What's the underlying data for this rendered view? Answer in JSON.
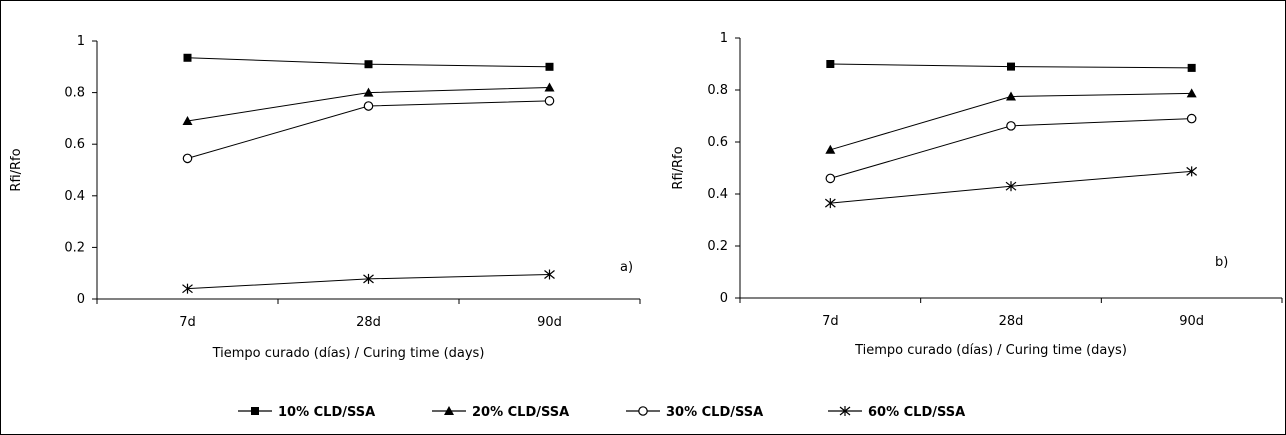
{
  "chart_data": [
    {
      "type": "line",
      "panel_label": "a)",
      "categories": [
        "7d",
        "28d",
        "90d"
      ],
      "xlabel": "Tiempo curado (días) / Curing time (days)",
      "ylabel": "Rfi/Rfo",
      "ylim": [
        0,
        1
      ],
      "yticks": [
        "0",
        "0.2",
        "0.4",
        "0.6",
        "0.8",
        "1"
      ],
      "grid": false,
      "series": [
        {
          "name": "10% CLD/SSA",
          "marker": "square",
          "values": [
            0.935,
            0.91,
            0.9
          ]
        },
        {
          "name": "20% CLD/SSA",
          "marker": "triangle",
          "values": [
            0.69,
            0.8,
            0.82
          ]
        },
        {
          "name": "30% CLD/SSA",
          "marker": "circle",
          "values": [
            0.545,
            0.748,
            0.768
          ]
        },
        {
          "name": "60% CLD/SSA",
          "marker": "star",
          "values": [
            0.04,
            0.078,
            0.095
          ]
        }
      ]
    },
    {
      "type": "line",
      "panel_label": "b)",
      "categories": [
        "7d",
        "28d",
        "90d"
      ],
      "xlabel": "Tiempo curado (días) / Curing time (days)",
      "ylabel": "Rfi/Rfo",
      "ylim": [
        0,
        1
      ],
      "yticks": [
        "0",
        "0.2",
        "0.4",
        "0.6",
        "0.8",
        "1"
      ],
      "grid": false,
      "series": [
        {
          "name": "10% CLD/SSA",
          "marker": "square",
          "values": [
            0.9,
            0.89,
            0.885
          ]
        },
        {
          "name": "20% CLD/SSA",
          "marker": "triangle",
          "values": [
            0.57,
            0.775,
            0.787
          ]
        },
        {
          "name": "30% CLD/SSA",
          "marker": "circle",
          "values": [
            0.46,
            0.662,
            0.69
          ]
        },
        {
          "name": "60% CLD/SSA",
          "marker": "star",
          "values": [
            0.365,
            0.43,
            0.487
          ]
        }
      ]
    }
  ],
  "legend": {
    "position": "bottom",
    "items": [
      "10% CLD/SSA",
      "20% CLD/SSA",
      "30% CLD/SSA",
      "60% CLD/SSA"
    ]
  },
  "colors": {
    "line": "#000000",
    "background": "#ffffff",
    "border": "#000000"
  }
}
